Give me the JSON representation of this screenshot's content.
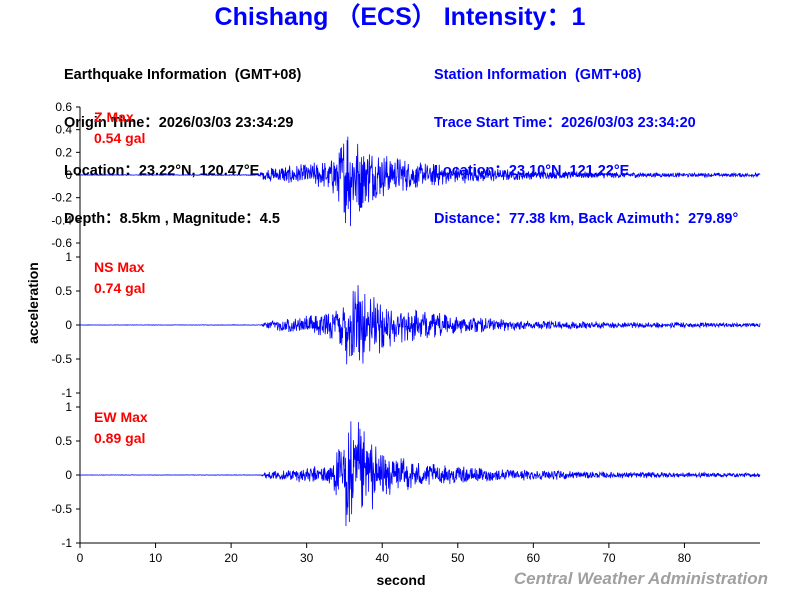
{
  "title": "Chishang （ECS） Intensity：1",
  "earthquake": {
    "heading": "Earthquake Information  (GMT+08)",
    "origin_time": "Origin Time：2026/03/03 23:34:29",
    "location": "Location：23.22°N, 120.47°E",
    "depth_magnitude": "Depth：8.5km , Magnitude：4.5"
  },
  "station": {
    "heading": "Station Information  (GMT+08)",
    "trace_start": "Trace Start Time：2026/03/03 23:34:20",
    "location": "Location：23.10°N, 121.22°E",
    "distance": "Distance：77.38 km, Back Azimuth：279.89°"
  },
  "footer": "Central Weather Administration",
  "colors": {
    "title": "#0000ff",
    "trace": "#0000ff",
    "max_label": "#ff0000",
    "footer": "#a0a0a0"
  },
  "chart_data": {
    "type": "line",
    "xlabel": "second",
    "ylabel": "acceleration",
    "xlim": [
      0,
      90
    ],
    "x_ticks": [
      0,
      10,
      20,
      30,
      40,
      50,
      60,
      70,
      80
    ],
    "panels": [
      {
        "name": "Z",
        "max_label": "Z Max",
        "max_value": "0.54 gal",
        "ylim": [
          -0.6,
          0.6
        ],
        "y_ticks": [
          -0.6,
          -0.4,
          -0.2,
          0,
          0.2,
          0.4,
          0.6
        ],
        "y_tick_labels": [
          "-0.6",
          "-0.4",
          "-0.2",
          "0",
          "0.2",
          "0.4",
          "0.6"
        ],
        "envelope": [
          [
            0,
            0.003
          ],
          [
            23.5,
            0.004
          ],
          [
            24.5,
            0.06
          ],
          [
            27,
            0.09
          ],
          [
            30,
            0.1
          ],
          [
            33,
            0.14
          ],
          [
            34.5,
            0.3
          ],
          [
            35.4,
            0.54
          ],
          [
            36,
            0.45
          ],
          [
            37,
            0.35
          ],
          [
            38,
            0.28
          ],
          [
            40,
            0.2
          ],
          [
            42,
            0.17
          ],
          [
            45,
            0.12
          ],
          [
            50,
            0.08
          ],
          [
            55,
            0.06
          ],
          [
            60,
            0.04
          ],
          [
            70,
            0.03
          ],
          [
            80,
            0.02
          ],
          [
            90,
            0.02
          ]
        ]
      },
      {
        "name": "NS",
        "max_label": "NS Max",
        "max_value": "0.74 gal",
        "ylim": [
          -1,
          1
        ],
        "y_ticks": [
          -1,
          -0.5,
          0,
          0.5,
          1
        ],
        "y_tick_labels": [
          "-1",
          "-0.5",
          "0",
          "0.5",
          "1"
        ],
        "envelope": [
          [
            0,
            0.003
          ],
          [
            24,
            0.004
          ],
          [
            24.5,
            0.06
          ],
          [
            27,
            0.1
          ],
          [
            30,
            0.14
          ],
          [
            33,
            0.2
          ],
          [
            34.8,
            0.45
          ],
          [
            35.6,
            0.74
          ],
          [
            36.6,
            0.7
          ],
          [
            38,
            0.55
          ],
          [
            40,
            0.4
          ],
          [
            42,
            0.3
          ],
          [
            45,
            0.22
          ],
          [
            50,
            0.14
          ],
          [
            55,
            0.1
          ],
          [
            60,
            0.07
          ],
          [
            70,
            0.05
          ],
          [
            80,
            0.04
          ],
          [
            90,
            0.03
          ]
        ]
      },
      {
        "name": "EW",
        "max_label": "EW Max",
        "max_value": "0.89 gal",
        "ylim": [
          -1,
          1
        ],
        "y_ticks": [
          -1,
          -0.5,
          0,
          0.5,
          1
        ],
        "y_tick_labels": [
          "-1",
          "-0.5",
          "0",
          "0.5",
          "1"
        ],
        "envelope": [
          [
            0,
            0.003
          ],
          [
            24,
            0.004
          ],
          [
            24.5,
            0.05
          ],
          [
            27,
            0.08
          ],
          [
            30,
            0.12
          ],
          [
            33,
            0.2
          ],
          [
            34.5,
            0.5
          ],
          [
            35.3,
            0.89
          ],
          [
            36.5,
            0.85
          ],
          [
            38,
            0.6
          ],
          [
            40,
            0.4
          ],
          [
            42,
            0.28
          ],
          [
            45,
            0.2
          ],
          [
            50,
            0.13
          ],
          [
            55,
            0.1
          ],
          [
            60,
            0.08
          ],
          [
            70,
            0.05
          ],
          [
            80,
            0.04
          ],
          [
            90,
            0.03
          ]
        ]
      }
    ]
  }
}
